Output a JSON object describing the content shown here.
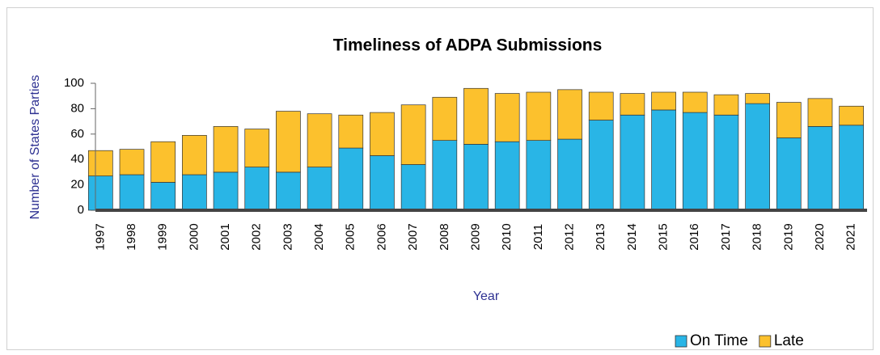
{
  "chart_data": {
    "type": "stacked_bar",
    "title": "Timeliness of ADPA Submissions",
    "x_label": "Year",
    "y_label": "Number of States Parties",
    "categories": [
      "1997",
      "1998",
      "1999",
      "2000",
      "2001",
      "2002",
      "2003",
      "2004",
      "2005",
      "2006",
      "2007",
      "2008",
      "2009",
      "2010",
      "2011",
      "2012",
      "2013",
      "2014",
      "2015",
      "2016",
      "2017",
      "2018",
      "2019",
      "2020",
      "2021"
    ],
    "series": [
      {
        "name": "On Time",
        "color": "#29b5e6",
        "values": [
          27,
          28,
          22,
          28,
          30,
          34,
          30,
          34,
          49,
          43,
          36,
          55,
          52,
          54,
          55,
          56,
          71,
          75,
          79,
          77,
          75,
          84,
          57,
          66,
          67
        ]
      },
      {
        "name": "Late",
        "color": "#fcc12d",
        "values": [
          20,
          20,
          32,
          31,
          36,
          30,
          48,
          42,
          26,
          34,
          47,
          34,
          44,
          38,
          38,
          39,
          22,
          17,
          14,
          16,
          16,
          8,
          28,
          22,
          15
        ]
      }
    ],
    "ylim": [
      0,
      100
    ],
    "yticks": [
      0,
      20,
      40,
      60,
      80,
      100
    ],
    "grid": false,
    "legend": "lower right"
  }
}
